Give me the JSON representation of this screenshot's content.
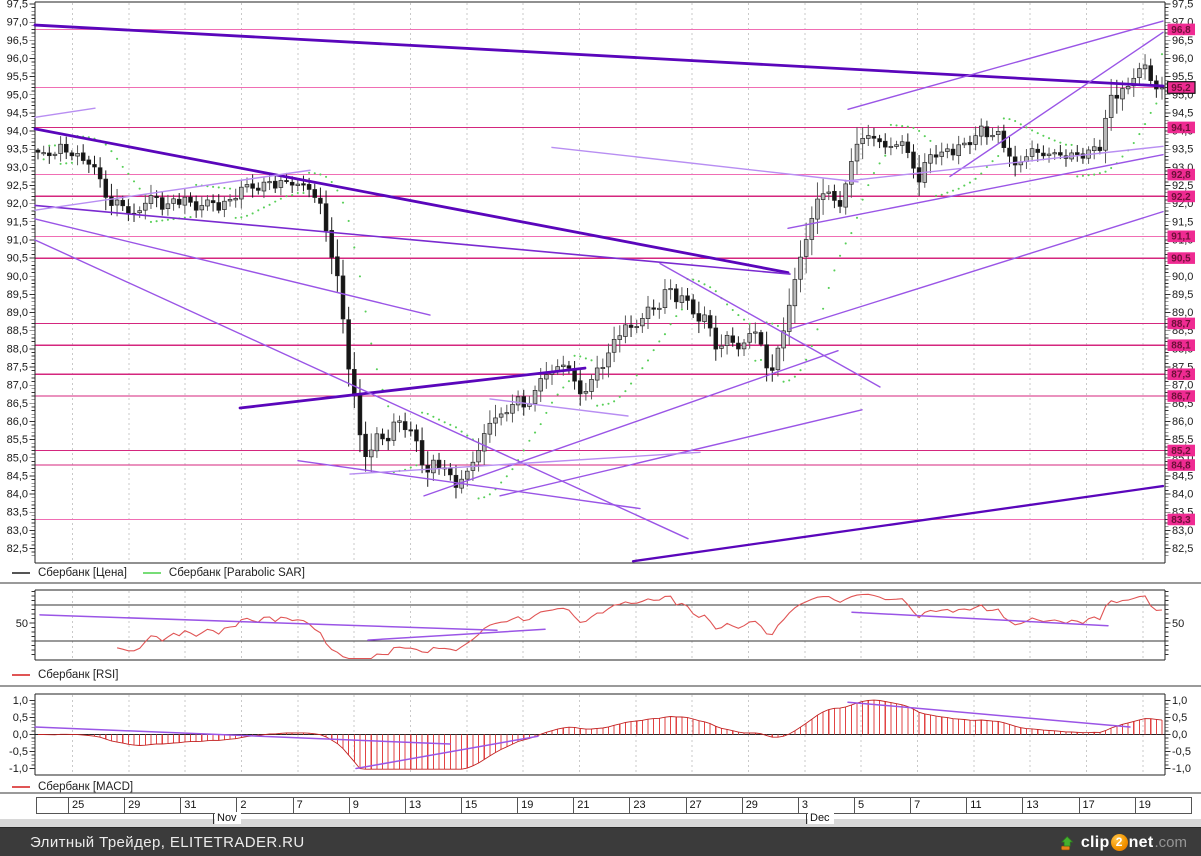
{
  "footer": {
    "title": "Элитный Трейдер, ELITETRADER.RU",
    "logo": {
      "clip": "clip",
      "two": "2",
      "net": "net",
      "dotcom": ".com"
    }
  },
  "legends": {
    "main": [
      {
        "label": "Сбербанк [Цена]",
        "color": "#555555"
      },
      {
        "label": "Сбербанк [Parabolic SAR]",
        "color": "#77dd77"
      }
    ],
    "rsi": [
      {
        "label": "Сбербанк [RSI]",
        "color": "#e05555"
      }
    ],
    "macd": [
      {
        "label": "Сбербанк [MACD]",
        "color": "#e05555"
      }
    ]
  },
  "chart_data": {
    "type": "candlestick",
    "instrument": "Сбербанк",
    "main": {
      "ylim": [
        82.3,
        97.6
      ],
      "ytick_step": 0.5,
      "tick_format": "comma-decimal",
      "current_price": 95.2,
      "levels": [
        96.8,
        95.2,
        94.1,
        92.8,
        92.2,
        91.1,
        90.5,
        88.7,
        88.1,
        87.3,
        86.7,
        85.2,
        84.8,
        83.3
      ],
      "levels_light": [
        96.8,
        95.2,
        92.8,
        91.1,
        83.3
      ],
      "colors": {
        "level_dark": "#d4267e",
        "level_light": "#f06eb4",
        "badge_bg": "#ef2b92",
        "badge_text": "#6d1038",
        "candle_down": "#161616",
        "candle_up": "#b8b8b8",
        "psar": "#58cf58",
        "trend_thick": "#5a06bb",
        "trend_med2": "#7a2ad0",
        "trend_med": "#9a55e6",
        "trend_light": "#b88ef2",
        "grid": "#c9c9c9",
        "frame": "#222222",
        "rsi_line": "#e05555",
        "macd_hist": "#e24343"
      },
      "trendlines": [
        [
          35,
          96.92,
          1163,
          95.24,
          "thick"
        ],
        [
          35,
          94.06,
          788,
          90.1,
          "thick"
        ],
        [
          240,
          86.37,
          585,
          87.47,
          "thick"
        ],
        [
          633,
          82.15,
          1163,
          84.22,
          "thick2"
        ],
        [
          35,
          91.95,
          790,
          90.06,
          "med2"
        ],
        [
          790,
          88.55,
          1163,
          91.78,
          "med"
        ],
        [
          848,
          94.6,
          1163,
          97.03,
          "med"
        ],
        [
          950,
          92.75,
          1163,
          96.72,
          "med"
        ],
        [
          35,
          91.0,
          688,
          82.77,
          "med"
        ],
        [
          35,
          91.58,
          430,
          88.93,
          "med"
        ],
        [
          298,
          84.92,
          640,
          83.6,
          "med"
        ],
        [
          424,
          83.95,
          838,
          87.95,
          "med"
        ],
        [
          500,
          83.95,
          862,
          86.32,
          "med"
        ],
        [
          660,
          90.35,
          880,
          86.95,
          "med"
        ],
        [
          788,
          91.32,
          1163,
          93.35,
          "med"
        ],
        [
          845,
          92.62,
          1163,
          93.58,
          "light"
        ],
        [
          35,
          91.82,
          310,
          92.92,
          "light"
        ],
        [
          35,
          94.38,
          95,
          94.63,
          "light"
        ],
        [
          350,
          84.55,
          700,
          85.15,
          "light"
        ],
        [
          490,
          86.62,
          628,
          86.15,
          "light"
        ],
        [
          552,
          93.55,
          858,
          92.6,
          "light"
        ]
      ],
      "price_path_anchors": [
        [
          35,
          93.4
        ],
        [
          48,
          93.25
        ],
        [
          60,
          93.55
        ],
        [
          72,
          93.45
        ],
        [
          85,
          93.2
        ],
        [
          95,
          92.95
        ],
        [
          105,
          92.2
        ],
        [
          113,
          91.9
        ],
        [
          122,
          92.1
        ],
        [
          132,
          91.65
        ],
        [
          142,
          91.95
        ],
        [
          152,
          92.2
        ],
        [
          163,
          91.85
        ],
        [
          174,
          92.05
        ],
        [
          185,
          92.2
        ],
        [
          196,
          91.9
        ],
        [
          207,
          92.05
        ],
        [
          218,
          91.85
        ],
        [
          228,
          92.0
        ],
        [
          238,
          92.35
        ],
        [
          248,
          92.6
        ],
        [
          258,
          92.4
        ],
        [
          268,
          92.6
        ],
        [
          278,
          92.4
        ],
        [
          288,
          92.65
        ],
        [
          298,
          92.5
        ],
        [
          306,
          92.62
        ],
        [
          314,
          92.25
        ],
        [
          322,
          91.85
        ],
        [
          330,
          90.7
        ],
        [
          337,
          89.9
        ],
        [
          344,
          88.7
        ],
        [
          350,
          87.1
        ],
        [
          356,
          86.5
        ],
        [
          362,
          85.3
        ],
        [
          368,
          85.0
        ],
        [
          374,
          85.45
        ],
        [
          380,
          85.75
        ],
        [
          387,
          85.3
        ],
        [
          394,
          85.85
        ],
        [
          400,
          86.1
        ],
        [
          407,
          85.6
        ],
        [
          414,
          85.85
        ],
        [
          421,
          84.95
        ],
        [
          428,
          84.6
        ],
        [
          435,
          85.0
        ],
        [
          442,
          84.65
        ],
        [
          450,
          84.45
        ],
        [
          458,
          84.15
        ],
        [
          465,
          84.5
        ],
        [
          473,
          84.95
        ],
        [
          481,
          85.45
        ],
        [
          489,
          85.95
        ],
        [
          496,
          86.2
        ],
        [
          503,
          86.0
        ],
        [
          511,
          86.45
        ],
        [
          519,
          86.6
        ],
        [
          526,
          86.3
        ],
        [
          534,
          86.9
        ],
        [
          542,
          87.2
        ],
        [
          549,
          87.5
        ],
        [
          556,
          87.3
        ],
        [
          564,
          87.6
        ],
        [
          571,
          87.35
        ],
        [
          578,
          86.7
        ],
        [
          586,
          86.9
        ],
        [
          594,
          87.35
        ],
        [
          602,
          87.6
        ],
        [
          610,
          87.95
        ],
        [
          618,
          88.35
        ],
        [
          626,
          88.6
        ],
        [
          634,
          88.45
        ],
        [
          641,
          88.85
        ],
        [
          649,
          89.2
        ],
        [
          656,
          89.05
        ],
        [
          663,
          89.55
        ],
        [
          670,
          89.65
        ],
        [
          677,
          89.3
        ],
        [
          685,
          89.4
        ],
        [
          693,
          88.95
        ],
        [
          700,
          88.8
        ],
        [
          707,
          88.95
        ],
        [
          714,
          88.25
        ],
        [
          720,
          87.9
        ],
        [
          727,
          88.4
        ],
        [
          734,
          88.15
        ],
        [
          740,
          87.8
        ],
        [
          747,
          88.3
        ],
        [
          754,
          88.6
        ],
        [
          760,
          88.15
        ],
        [
          766,
          87.6
        ],
        [
          773,
          87.5
        ],
        [
          779,
          88.05
        ],
        [
          786,
          88.85
        ],
        [
          793,
          89.6
        ],
        [
          799,
          90.3
        ],
        [
          806,
          91.0
        ],
        [
          812,
          91.6
        ],
        [
          818,
          92.1
        ],
        [
          825,
          92.55
        ],
        [
          832,
          92.2
        ],
        [
          838,
          91.85
        ],
        [
          845,
          92.45
        ],
        [
          852,
          93.15
        ],
        [
          858,
          93.65
        ],
        [
          865,
          93.9
        ],
        [
          872,
          93.7
        ],
        [
          879,
          93.9
        ],
        [
          886,
          93.5
        ],
        [
          893,
          93.65
        ],
        [
          900,
          93.8
        ],
        [
          907,
          93.4
        ],
        [
          913,
          92.95
        ],
        [
          919,
          92.6
        ],
        [
          926,
          93.1
        ],
        [
          933,
          93.5
        ],
        [
          940,
          93.3
        ],
        [
          947,
          93.6
        ],
        [
          954,
          93.4
        ],
        [
          961,
          93.7
        ],
        [
          968,
          93.5
        ],
        [
          975,
          93.85
        ],
        [
          982,
          94.0
        ],
        [
          989,
          93.85
        ],
        [
          996,
          94.05
        ],
        [
          1003,
          93.7
        ],
        [
          1010,
          93.35
        ],
        [
          1017,
          92.95
        ],
        [
          1024,
          93.2
        ],
        [
          1031,
          93.5
        ],
        [
          1038,
          93.25
        ],
        [
          1045,
          93.45
        ],
        [
          1052,
          93.3
        ],
        [
          1059,
          93.5
        ],
        [
          1066,
          93.3
        ],
        [
          1073,
          93.42
        ],
        [
          1080,
          93.25
        ],
        [
          1087,
          93.35
        ],
        [
          1094,
          93.45
        ],
        [
          1100,
          93.55
        ],
        [
          1106,
          94.35
        ],
        [
          1112,
          95.1
        ],
        [
          1118,
          95.0
        ],
        [
          1124,
          95.3
        ],
        [
          1130,
          95.2
        ],
        [
          1136,
          95.6
        ],
        [
          1142,
          95.9
        ],
        [
          1148,
          95.45
        ],
        [
          1155,
          95.15
        ],
        [
          1163,
          95.2
        ]
      ]
    },
    "rsi": {
      "derived": "RSI(14) of close",
      "center_label": "50",
      "upper_line": 70,
      "lower_line": 30,
      "trendlines_rsi": [
        [
          40,
          59,
          497,
          42
        ],
        [
          368,
          31,
          545,
          43
        ],
        [
          852,
          62,
          1108,
          47
        ]
      ]
    },
    "macd": {
      "derived": "EMA12 - EMA26 of close",
      "yticks": [
        1.0,
        0.5,
        0.0,
        -0.5,
        -1.0
      ],
      "scale": 0.75,
      "trendlines_macd": [
        [
          35,
          0.22,
          450,
          -0.28
        ],
        [
          356,
          -1.0,
          538,
          -0.05
        ],
        [
          848,
          0.95,
          1130,
          0.22
        ]
      ]
    },
    "x_axis": {
      "date_cells": [
        "",
        "25",
        "29",
        "31",
        "2",
        "7",
        "9",
        "13",
        "15",
        "19",
        "21",
        "23",
        "27",
        "29",
        "3",
        "5",
        "7",
        "11",
        "13",
        "17",
        "19"
      ],
      "months": [
        {
          "label": "Nov",
          "x": 213
        },
        {
          "label": "Dec",
          "x": 806
        }
      ]
    }
  }
}
